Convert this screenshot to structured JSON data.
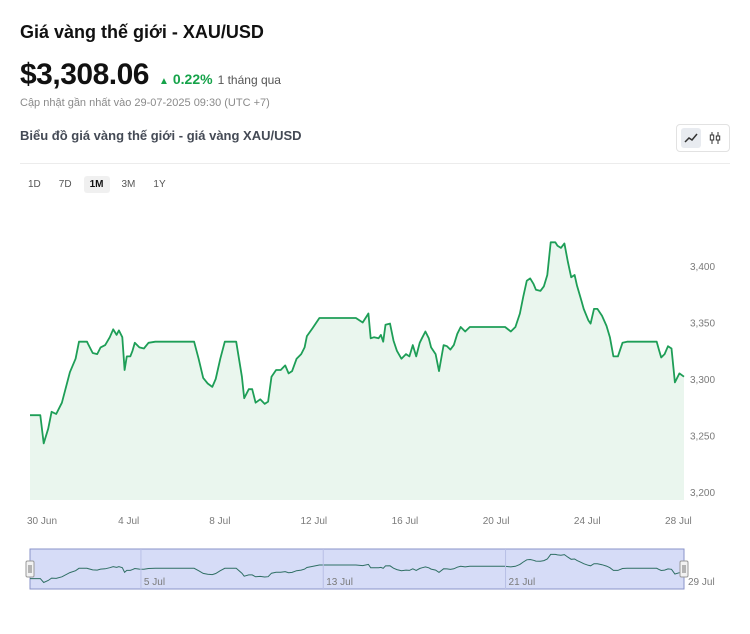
{
  "header": {
    "title": "Giá vàng thế giới - XAU/USD",
    "price": "$3,308.06",
    "change": "0.22%",
    "change_period": "1 tháng qua",
    "updated": "Cập nhật gần nhất vào 29-07-2025 09:30 (UTC +7)",
    "subtitle": "Biểu đồ giá vàng thế giới - giá vàng XAU/USD"
  },
  "toggle": {
    "line_icon": "line-chart-icon",
    "candle_icon": "candlestick-icon",
    "active": "line"
  },
  "ranges": [
    {
      "label": "1D",
      "active": false
    },
    {
      "label": "7D",
      "active": false
    },
    {
      "label": "1M",
      "active": true
    },
    {
      "label": "3M",
      "active": false
    },
    {
      "label": "1Y",
      "active": false
    }
  ],
  "colors": {
    "accent": "#16a34a",
    "line": "#1e9e57",
    "fill": "#eaf6ee",
    "navigator_bg": "#d6dcf7",
    "navigator_border": "#8a93c9"
  },
  "chart_data": {
    "type": "area",
    "ylim": [
      3200,
      3430
    ],
    "y_ticks": [
      "3,200",
      "3,250",
      "3,300",
      "3,350",
      "3,400"
    ],
    "y_tick_values": [
      3200,
      3250,
      3300,
      3350,
      3400
    ],
    "x_tick_labels": [
      "30 Jun",
      "4 Jul",
      "8 Jul",
      "12 Jul",
      "16 Jul",
      "20 Jul",
      "24 Jul",
      "28 Jul"
    ],
    "x_tick_days": [
      0,
      4,
      8,
      12,
      16,
      20,
      24,
      28
    ],
    "x_range": [
      0,
      28.7
    ],
    "grid": false,
    "series": [
      {
        "values": [
          [
            0.0,
            3268
          ],
          [
            0.45,
            3268
          ],
          [
            0.6,
            3243
          ],
          [
            0.8,
            3256
          ],
          [
            0.95,
            3271
          ],
          [
            1.15,
            3269
          ],
          [
            1.4,
            3279
          ],
          [
            1.75,
            3306
          ],
          [
            2.0,
            3318
          ],
          [
            2.15,
            3333
          ],
          [
            2.5,
            3333
          ],
          [
            2.55,
            3331
          ],
          [
            2.75,
            3323
          ],
          [
            2.95,
            3322
          ],
          [
            3.1,
            3328
          ],
          [
            3.3,
            3330
          ],
          [
            3.5,
            3337
          ],
          [
            3.65,
            3344
          ],
          [
            3.8,
            3339
          ],
          [
            3.9,
            3343
          ],
          [
            4.05,
            3337
          ],
          [
            4.15,
            3308
          ],
          [
            4.25,
            3320
          ],
          [
            4.4,
            3320
          ],
          [
            4.5,
            3325
          ],
          [
            4.6,
            3332
          ],
          [
            4.8,
            3328
          ],
          [
            5.0,
            3327
          ],
          [
            5.2,
            3332
          ],
          [
            5.5,
            3333
          ],
          [
            7.2,
            3333
          ],
          [
            7.4,
            3318
          ],
          [
            7.6,
            3301
          ],
          [
            7.8,
            3296
          ],
          [
            8.0,
            3293
          ],
          [
            8.15,
            3300
          ],
          [
            8.35,
            3318
          ],
          [
            8.55,
            3333
          ],
          [
            9.05,
            3333
          ],
          [
            9.3,
            3302
          ],
          [
            9.4,
            3283
          ],
          [
            9.6,
            3291
          ],
          [
            9.75,
            3291
          ],
          [
            9.9,
            3279
          ],
          [
            10.1,
            3282
          ],
          [
            10.3,
            3278
          ],
          [
            10.45,
            3280
          ],
          [
            10.6,
            3302
          ],
          [
            10.8,
            3308
          ],
          [
            11.0,
            3308
          ],
          [
            11.2,
            3312
          ],
          [
            11.35,
            3305
          ],
          [
            11.5,
            3307
          ],
          [
            11.7,
            3318
          ],
          [
            11.9,
            3322
          ],
          [
            12.05,
            3328
          ],
          [
            12.15,
            3338
          ],
          [
            12.4,
            3345
          ],
          [
            12.7,
            3354
          ],
          [
            14.3,
            3354
          ],
          [
            14.6,
            3350
          ],
          [
            14.85,
            3358
          ],
          [
            14.95,
            3336
          ],
          [
            15.1,
            3337
          ],
          [
            15.3,
            3336
          ],
          [
            15.4,
            3339
          ],
          [
            15.5,
            3333
          ],
          [
            15.6,
            3348
          ],
          [
            15.8,
            3349
          ],
          [
            15.95,
            3334
          ],
          [
            16.1,
            3325
          ],
          [
            16.3,
            3318
          ],
          [
            16.5,
            3322
          ],
          [
            16.65,
            3320
          ],
          [
            16.8,
            3330
          ],
          [
            16.95,
            3320
          ],
          [
            17.1,
            3332
          ],
          [
            17.2,
            3336
          ],
          [
            17.35,
            3342
          ],
          [
            17.5,
            3336
          ],
          [
            17.6,
            3328
          ],
          [
            17.8,
            3322
          ],
          [
            17.95,
            3307
          ],
          [
            18.15,
            3330
          ],
          [
            18.3,
            3329
          ],
          [
            18.45,
            3326
          ],
          [
            18.6,
            3330
          ],
          [
            18.75,
            3340
          ],
          [
            18.9,
            3346
          ],
          [
            19.1,
            3342
          ],
          [
            19.3,
            3346
          ],
          [
            20.85,
            3346
          ],
          [
            21.1,
            3342
          ],
          [
            21.3,
            3346
          ],
          [
            21.5,
            3358
          ],
          [
            21.65,
            3373
          ],
          [
            21.8,
            3387
          ],
          [
            21.95,
            3389
          ],
          [
            22.1,
            3384
          ],
          [
            22.2,
            3379
          ],
          [
            22.4,
            3378
          ],
          [
            22.55,
            3382
          ],
          [
            22.7,
            3392
          ],
          [
            22.85,
            3421
          ],
          [
            23.05,
            3421
          ],
          [
            23.15,
            3418
          ],
          [
            23.3,
            3416
          ],
          [
            23.45,
            3420
          ],
          [
            23.6,
            3404
          ],
          [
            23.75,
            3390
          ],
          [
            23.9,
            3392
          ],
          [
            24.0,
            3383
          ],
          [
            24.2,
            3369
          ],
          [
            24.3,
            3362
          ],
          [
            24.5,
            3352
          ],
          [
            24.6,
            3349
          ],
          [
            24.75,
            3362
          ],
          [
            24.9,
            3362
          ],
          [
            25.1,
            3356
          ],
          [
            25.3,
            3347
          ],
          [
            25.45,
            3337
          ],
          [
            25.6,
            3320
          ],
          [
            25.8,
            3320
          ],
          [
            26.0,
            3332
          ],
          [
            26.2,
            3333
          ],
          [
            27.5,
            3333
          ],
          [
            27.6,
            3326
          ],
          [
            27.7,
            3319
          ],
          [
            27.85,
            3322
          ],
          [
            28.0,
            3329
          ],
          [
            28.15,
            3327
          ],
          [
            28.3,
            3297
          ],
          [
            28.5,
            3305
          ],
          [
            28.7,
            3302
          ]
        ]
      }
    ],
    "navigator": {
      "x_tick_labels": [
        "5 Jul",
        "13 Jul",
        "21 Jul",
        "29 Jul"
      ],
      "x_tick_days": [
        5,
        13,
        21,
        29
      ]
    }
  }
}
